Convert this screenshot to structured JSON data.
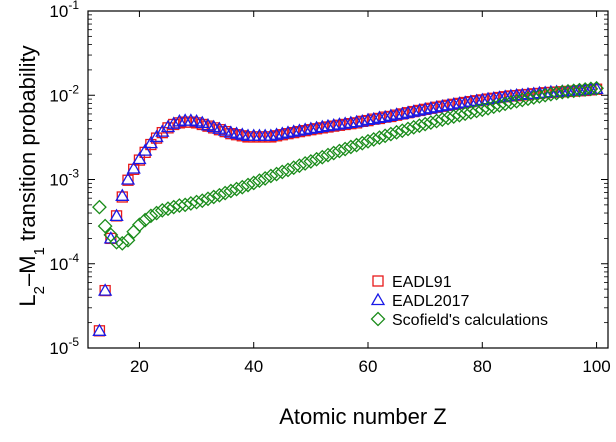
{
  "chart_data": {
    "type": "scatter",
    "title": "",
    "xlabel": "Atomic number Z",
    "ylabel": {
      "pre": "L",
      "sub1": "2",
      "mid": "–M",
      "sub2": "1",
      "post": " transition probability"
    },
    "xlim": [
      11,
      102
    ],
    "ylim": [
      1e-05,
      0.1
    ],
    "yscale": "log",
    "x_ticks": [
      20,
      40,
      60,
      80,
      100
    ],
    "y_ticks": [
      {
        "value": 1e-05,
        "base": "10",
        "exp": "-5"
      },
      {
        "value": 0.0001,
        "base": "10",
        "exp": "-4"
      },
      {
        "value": 0.001,
        "base": "10",
        "exp": "-3"
      },
      {
        "value": 0.01,
        "base": "10",
        "exp": "-2"
      },
      {
        "value": 0.1,
        "base": "10",
        "exp": "-1"
      }
    ],
    "legend_position": "bottom-right",
    "series": [
      {
        "name": "EADL91",
        "marker": "square",
        "color": "#e8191a",
        "x": [
          13,
          14,
          15,
          16,
          17,
          18,
          19,
          20,
          21,
          22,
          23,
          24,
          25,
          26,
          27,
          28,
          29,
          30,
          31,
          32,
          33,
          34,
          35,
          36,
          37,
          38,
          39,
          40,
          41,
          42,
          43,
          44,
          45,
          46,
          47,
          48,
          49,
          50,
          51,
          52,
          53,
          54,
          55,
          56,
          57,
          58,
          59,
          60,
          61,
          62,
          63,
          64,
          65,
          66,
          67,
          68,
          69,
          70,
          71,
          72,
          73,
          74,
          75,
          76,
          77,
          78,
          79,
          80,
          81,
          82,
          83,
          84,
          85,
          86,
          87,
          88,
          89,
          90,
          91,
          92,
          93,
          94,
          95,
          96,
          97,
          98,
          99,
          100
        ],
        "y": [
          1.6e-05,
          4.8e-05,
          0.0002,
          0.00037,
          0.00062,
          0.00098,
          0.00132,
          0.0017,
          0.0021,
          0.0026,
          0.0031,
          0.0036,
          0.0041,
          0.0045,
          0.0047,
          0.0048,
          0.0048,
          0.0047,
          0.0045,
          0.0043,
          0.0041,
          0.0039,
          0.0037,
          0.0035,
          0.0034,
          0.0033,
          0.0032,
          0.0032,
          0.0032,
          0.0032,
          0.0032,
          0.0033,
          0.0034,
          0.0035,
          0.0036,
          0.0037,
          0.0038,
          0.0039,
          0.004,
          0.0041,
          0.0042,
          0.0043,
          0.0044,
          0.0045,
          0.0046,
          0.0047,
          0.0049,
          0.005,
          0.0052,
          0.0053,
          0.0055,
          0.0056,
          0.0058,
          0.006,
          0.0062,
          0.0064,
          0.0066,
          0.0068,
          0.007,
          0.0072,
          0.0074,
          0.0076,
          0.0078,
          0.008,
          0.0082,
          0.0084,
          0.0086,
          0.0088,
          0.009,
          0.0092,
          0.0094,
          0.0096,
          0.0098,
          0.0099,
          0.0101,
          0.0102,
          0.0104,
          0.0105,
          0.0107,
          0.0108,
          0.0109,
          0.011,
          0.0111,
          0.0112,
          0.0113,
          0.0114,
          0.0116,
          0.0118
        ]
      },
      {
        "name": "EADL2017",
        "marker": "triangle",
        "color": "#1a1ae6",
        "x": [
          13,
          14,
          15,
          16,
          17,
          18,
          19,
          20,
          21,
          22,
          23,
          24,
          25,
          26,
          27,
          28,
          29,
          30,
          31,
          32,
          33,
          34,
          35,
          36,
          37,
          38,
          39,
          40,
          41,
          42,
          43,
          44,
          45,
          46,
          47,
          48,
          49,
          50,
          51,
          52,
          53,
          54,
          55,
          56,
          57,
          58,
          59,
          60,
          61,
          62,
          63,
          64,
          65,
          66,
          67,
          68,
          69,
          70,
          71,
          72,
          73,
          74,
          75,
          76,
          77,
          78,
          79,
          80,
          81,
          82,
          83,
          84,
          85,
          86,
          87,
          88,
          89,
          90,
          91,
          92,
          93,
          94,
          95,
          96,
          97,
          98,
          99,
          100
        ],
        "y": [
          1.6e-05,
          4.8e-05,
          0.0002,
          0.00037,
          0.00064,
          0.001,
          0.00135,
          0.00175,
          0.0022,
          0.0027,
          0.0032,
          0.0037,
          0.0042,
          0.0046,
          0.0049,
          0.005,
          0.005,
          0.0049,
          0.0047,
          0.0044,
          0.0042,
          0.004,
          0.0038,
          0.0036,
          0.0035,
          0.0034,
          0.0033,
          0.0033,
          0.0033,
          0.0033,
          0.0033,
          0.0034,
          0.0035,
          0.0036,
          0.0037,
          0.0038,
          0.0039,
          0.004,
          0.0041,
          0.0042,
          0.0043,
          0.0044,
          0.0045,
          0.0046,
          0.0047,
          0.0048,
          0.0049,
          0.0051,
          0.0052,
          0.0054,
          0.0055,
          0.0057,
          0.0059,
          0.006,
          0.0062,
          0.0064,
          0.0066,
          0.0068,
          0.007,
          0.0072,
          0.0074,
          0.0076,
          0.0078,
          0.008,
          0.0082,
          0.0084,
          0.0086,
          0.0088,
          0.009,
          0.0092,
          0.0094,
          0.0096,
          0.0098,
          0.01,
          0.0101,
          0.0103,
          0.0104,
          0.0106,
          0.0107,
          0.0109,
          0.011,
          0.0111,
          0.0112,
          0.0113,
          0.0114,
          0.0115,
          0.0117,
          0.0119
        ]
      },
      {
        "name": "Scofield's calculations",
        "marker": "diamond",
        "color": "#1a8c1a",
        "x": [
          13,
          14,
          15,
          16,
          17,
          18,
          19,
          20,
          21,
          22,
          23,
          24,
          25,
          26,
          27,
          28,
          29,
          30,
          31,
          32,
          33,
          34,
          35,
          36,
          37,
          38,
          39,
          40,
          41,
          42,
          43,
          44,
          45,
          46,
          47,
          48,
          49,
          50,
          51,
          52,
          53,
          54,
          55,
          56,
          57,
          58,
          59,
          60,
          61,
          62,
          63,
          64,
          65,
          66,
          67,
          68,
          69,
          70,
          71,
          72,
          73,
          74,
          75,
          76,
          77,
          78,
          79,
          80,
          81,
          82,
          83,
          84,
          85,
          86,
          87,
          88,
          89,
          90,
          91,
          92,
          93,
          94,
          95,
          96,
          97,
          98,
          99,
          100
        ],
        "y": [
          0.00047,
          0.00028,
          0.00022,
          0.00018,
          0.000175,
          0.00019,
          0.00024,
          0.00029,
          0.00033,
          0.00037,
          0.0004,
          0.00043,
          0.00045,
          0.00047,
          0.00049,
          0.0005,
          0.00052,
          0.00054,
          0.00056,
          0.00059,
          0.00062,
          0.00065,
          0.00069,
          0.00073,
          0.00077,
          0.00081,
          0.00086,
          0.00091,
          0.00097,
          0.00103,
          0.0011,
          0.00116,
          0.00123,
          0.0013,
          0.00138,
          0.00146,
          0.00155,
          0.00164,
          0.00174,
          0.00184,
          0.00195,
          0.00206,
          0.00218,
          0.0023,
          0.00243,
          0.00256,
          0.0027,
          0.00284,
          0.00299,
          0.00314,
          0.0033,
          0.00346,
          0.00363,
          0.0038,
          0.00398,
          0.00416,
          0.00435,
          0.00454,
          0.00474,
          0.00494,
          0.00515,
          0.00536,
          0.00558,
          0.0058,
          0.00603,
          0.00626,
          0.0065,
          0.00674,
          0.007,
          0.0073,
          0.0076,
          0.0079,
          0.0082,
          0.0085,
          0.0088,
          0.0091,
          0.0094,
          0.0097,
          0.01,
          0.0103,
          0.0106,
          0.0109,
          0.0111,
          0.0113,
          0.0115,
          0.0117,
          0.0119,
          0.0121
        ]
      }
    ]
  }
}
